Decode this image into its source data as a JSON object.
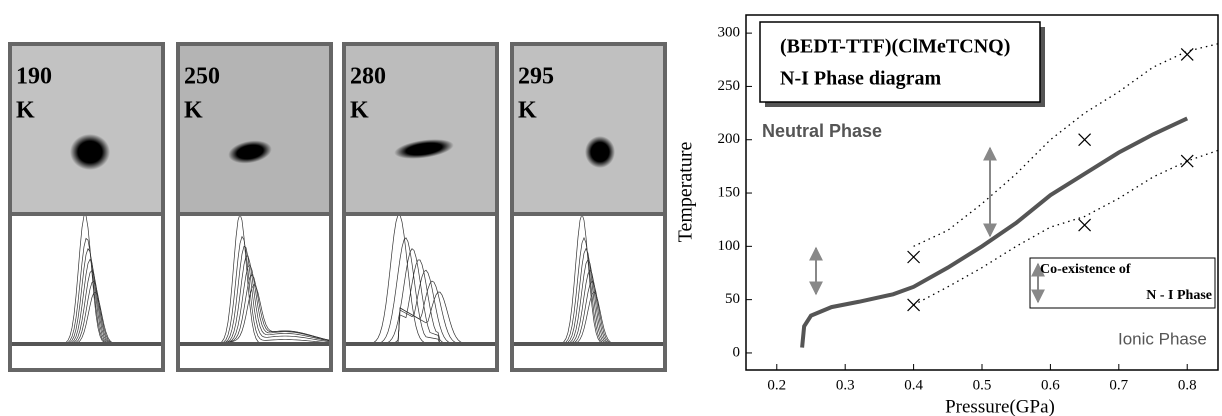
{
  "panels": [
    {
      "label": "190",
      "unit": "K"
    },
    {
      "label": "250",
      "unit": "K"
    },
    {
      "label": "280",
      "unit": "K"
    },
    {
      "label": "295",
      "unit": "K"
    }
  ],
  "chart_data": {
    "type": "line",
    "x_label": "Pressure(GPa)",
    "y_label": "Temperature",
    "xlim": [
      0.155,
      0.845
    ],
    "ylim": [
      -16,
      317
    ],
    "xticks": [
      0.2,
      0.3,
      0.4,
      0.5,
      0.6,
      0.7,
      0.8
    ],
    "yticks": [
      0,
      50,
      100,
      150,
      200,
      250,
      300
    ],
    "annotations": {
      "title_line1": "(BEDT-TTF)(ClMeTCNQ)",
      "title_line2": "N-I Phase diagram",
      "neutral": "Neutral Phase",
      "ionic": "Ionic Phase",
      "coexist_line1": "Co-existence of",
      "coexist_line2": "N - I Phase"
    },
    "series": [
      {
        "type": "line",
        "style": "solid",
        "color": "#555555",
        "x": [
          0.237,
          0.24,
          0.25,
          0.28,
          0.32,
          0.37,
          0.4,
          0.45,
          0.5,
          0.55,
          0.6,
          0.65,
          0.7,
          0.75,
          0.8
        ],
        "values": [
          5,
          25,
          35,
          43,
          48,
          55,
          62,
          80,
          100,
          122,
          148,
          168,
          188,
          205,
          220
        ]
      },
      {
        "type": "line",
        "style": "dotted",
        "color": "#000000",
        "x": [
          0.4,
          0.45,
          0.5,
          0.55,
          0.6,
          0.65,
          0.7,
          0.75,
          0.8,
          0.845
        ],
        "values": [
          100,
          115,
          140,
          168,
          200,
          225,
          245,
          268,
          283,
          290
        ]
      },
      {
        "type": "line",
        "style": "dotted",
        "color": "#000000",
        "x": [
          0.4,
          0.45,
          0.5,
          0.55,
          0.6,
          0.65,
          0.7,
          0.75,
          0.8,
          0.845
        ],
        "values": [
          45,
          62,
          80,
          100,
          118,
          128,
          145,
          165,
          180,
          190
        ]
      },
      {
        "type": "scatter",
        "color": "#000000",
        "x": [
          0.4,
          0.4,
          0.65,
          0.65,
          0.8,
          0.8
        ],
        "values": [
          90,
          45,
          200,
          120,
          280,
          180
        ]
      }
    ]
  }
}
